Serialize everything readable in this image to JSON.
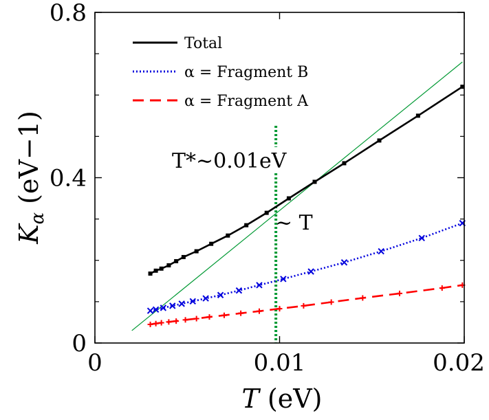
{
  "chart_data": {
    "type": "line",
    "xlabel": {
      "var": "T",
      "unit": "(eV)"
    },
    "ylabel": {
      "var": "K",
      "sub": "α",
      "unit": "(eV−1)"
    },
    "xlim": [
      0,
      0.02
    ],
    "ylim": [
      0,
      0.8
    ],
    "xticks": [
      0,
      0.01,
      0.02
    ],
    "xtick_labels": [
      "0",
      "0.01",
      "0.02"
    ],
    "yticks": [
      0,
      0.4,
      0.8
    ],
    "ytick_labels": [
      "0",
      "0.4",
      "0.8"
    ],
    "ytick_minor": [
      0.1,
      0.2,
      0.3,
      0.5,
      0.6,
      0.7
    ],
    "series": [
      {
        "name": "Total",
        "legend": "Total",
        "color": "#000000",
        "style": "solid",
        "marker": "square",
        "x": [
          0.003,
          0.0033,
          0.0036,
          0.004,
          0.0044,
          0.0048,
          0.0055,
          0.0063,
          0.0072,
          0.0082,
          0.0093,
          0.0105,
          0.0119,
          0.0135,
          0.0154,
          0.0175,
          0.0199
        ],
        "y": [
          0.168,
          0.175,
          0.18,
          0.188,
          0.198,
          0.208,
          0.222,
          0.24,
          0.26,
          0.285,
          0.315,
          0.35,
          0.39,
          0.435,
          0.49,
          0.55,
          0.62
        ]
      },
      {
        "name": "alpha = Fragment B",
        "legend": "α = Fragment B",
        "color": "#0000dd",
        "style": "dotted",
        "marker": "x",
        "x": [
          0.003,
          0.0033,
          0.0037,
          0.0042,
          0.0047,
          0.0053,
          0.006,
          0.0068,
          0.0078,
          0.0089,
          0.0102,
          0.0117,
          0.0135,
          0.0155,
          0.0177,
          0.0199
        ],
        "y": [
          0.078,
          0.081,
          0.085,
          0.09,
          0.095,
          0.101,
          0.108,
          0.116,
          0.127,
          0.14,
          0.155,
          0.173,
          0.195,
          0.222,
          0.254,
          0.29
        ]
      },
      {
        "name": "alpha = Fragment A",
        "legend": "α = Fragment A",
        "color": "#ff0000",
        "style": "dashed",
        "marker": "plus",
        "x": [
          0.003,
          0.0033,
          0.0036,
          0.004,
          0.0044,
          0.0049,
          0.0055,
          0.0062,
          0.007,
          0.0079,
          0.0089,
          0.01,
          0.0113,
          0.0128,
          0.0145,
          0.0165,
          0.0188,
          0.0199
        ],
        "y": [
          0.045,
          0.047,
          0.049,
          0.051,
          0.053,
          0.056,
          0.059,
          0.063,
          0.067,
          0.072,
          0.077,
          0.083,
          0.09,
          0.099,
          0.109,
          0.12,
          0.133,
          0.14
        ]
      }
    ],
    "reference_line": {
      "label": "~ T",
      "color": "#009933",
      "x": [
        0.002,
        0.0199
      ],
      "y": [
        0.03,
        0.68
      ]
    },
    "vertical_marker": {
      "x": 0.0098,
      "color": "#009933",
      "label": "T*∼0.01eV"
    },
    "legend_position": "top-left"
  }
}
